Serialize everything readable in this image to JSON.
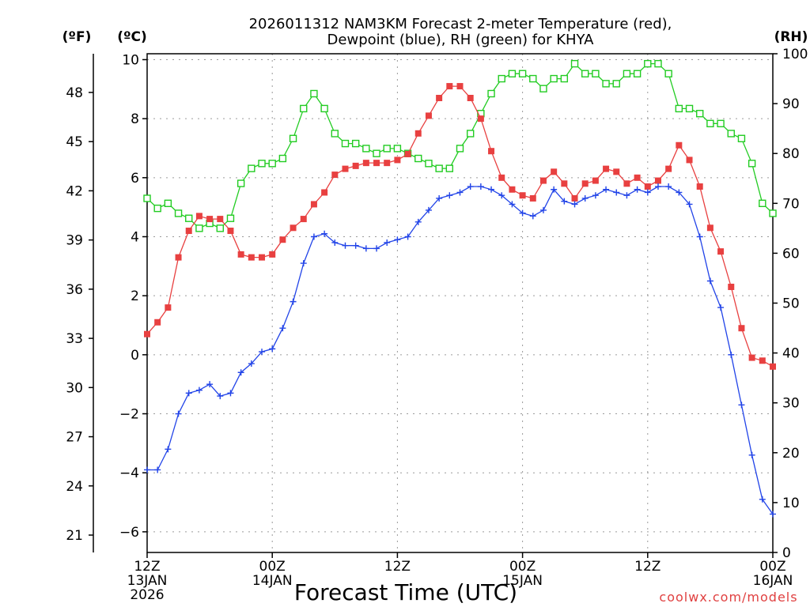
{
  "chart_data": {
    "type": "line",
    "title_line1": "2026011312 NAM3KM Forecast 2-meter Temperature (red),",
    "title_line2": "Dewpoint (blue), RH (green) for KHYA",
    "xlabel": "Forecast Time (UTC)",
    "credit": "coolwx.com/models",
    "left_unit_f": "(ºF)",
    "left_unit_c": "(ºC)",
    "right_unit": "(RH)",
    "ylim_c": [
      -6.7,
      10.2
    ],
    "ylim_rh": [
      0,
      100
    ],
    "hours_range": [
      0,
      60
    ],
    "x_ticks": [
      {
        "hour": 0,
        "label1": "12Z",
        "label2": "13JAN",
        "label3": "2026"
      },
      {
        "hour": 12,
        "label1": "00Z",
        "label2": "14JAN",
        "label3": ""
      },
      {
        "hour": 24,
        "label1": "12Z",
        "label2": "",
        "label3": ""
      },
      {
        "hour": 36,
        "label1": "00Z",
        "label2": "15JAN",
        "label3": ""
      },
      {
        "hour": 48,
        "label1": "12Z",
        "label2": "",
        "label3": ""
      },
      {
        "hour": 60,
        "label1": "00Z",
        "label2": "16JAN",
        "label3": ""
      }
    ],
    "c_ticks": [
      {
        "value": 10,
        "label": "10"
      },
      {
        "value": 8,
        "label": "8"
      },
      {
        "value": 6,
        "label": "6"
      },
      {
        "value": 4,
        "label": "4"
      },
      {
        "value": 2,
        "label": "2"
      },
      {
        "value": 0,
        "label": "0"
      },
      {
        "value": -2,
        "label": "−2"
      },
      {
        "value": -4,
        "label": "−4"
      },
      {
        "value": -6,
        "label": "−6"
      }
    ],
    "f_ticks": [
      {
        "value": 48,
        "label": "48"
      },
      {
        "value": 45,
        "label": "45"
      },
      {
        "value": 42,
        "label": "42"
      },
      {
        "value": 39,
        "label": "39"
      },
      {
        "value": 36,
        "label": "36"
      },
      {
        "value": 33,
        "label": "33"
      },
      {
        "value": 30,
        "label": "30"
      },
      {
        "value": 27,
        "label": "27"
      },
      {
        "value": 24,
        "label": "24"
      },
      {
        "value": 21,
        "label": "21"
      }
    ],
    "rh_ticks": [
      {
        "value": 100,
        "label": "100"
      },
      {
        "value": 90,
        "label": "90"
      },
      {
        "value": 80,
        "label": "80"
      },
      {
        "value": 70,
        "label": "70"
      },
      {
        "value": 60,
        "label": "60"
      },
      {
        "value": 50,
        "label": "50"
      },
      {
        "value": 40,
        "label": "40"
      },
      {
        "value": 30,
        "label": "30"
      },
      {
        "value": 20,
        "label": "20"
      },
      {
        "value": 10,
        "label": "10"
      },
      {
        "value": 0,
        "label": "0"
      }
    ],
    "series": [
      {
        "name": "2-meter Temperature (°C)",
        "color": "#e84040",
        "marker": "filled-square",
        "axis": "celsius",
        "x": [
          0,
          1,
          2,
          3,
          4,
          5,
          6,
          7,
          8,
          9,
          10,
          11,
          12,
          13,
          14,
          15,
          16,
          17,
          18,
          19,
          20,
          21,
          22,
          23,
          24,
          25,
          26,
          27,
          28,
          29,
          30,
          31,
          32,
          33,
          34,
          35,
          36,
          37,
          38,
          39,
          40,
          41,
          42,
          43,
          44,
          45,
          46,
          47,
          48,
          49,
          50,
          51,
          52,
          53,
          54,
          55,
          56,
          57,
          58,
          59,
          60
        ],
        "values": [
          0.7,
          1.1,
          1.6,
          3.3,
          4.2,
          4.7,
          4.6,
          4.6,
          4.2,
          3.4,
          3.3,
          3.3,
          3.4,
          3.9,
          4.3,
          4.6,
          5.1,
          5.5,
          6.1,
          6.3,
          6.4,
          6.5,
          6.5,
          6.5,
          6.6,
          6.8,
          7.5,
          8.1,
          8.7,
          9.1,
          9.1,
          8.7,
          8.0,
          6.9,
          6.0,
          5.6,
          5.4,
          5.3,
          5.9,
          6.2,
          5.8,
          5.3,
          5.8,
          5.9,
          6.3,
          6.2,
          5.8,
          6.0,
          5.7,
          5.9,
          6.3,
          7.1,
          6.6,
          5.7,
          4.3,
          3.5,
          2.3,
          0.9,
          -0.1,
          -0.2,
          -0.4
        ]
      },
      {
        "name": "Dewpoint (°C)",
        "color": "#2244e8",
        "marker": "plus",
        "axis": "celsius",
        "x": [
          0,
          1,
          2,
          3,
          4,
          5,
          6,
          7,
          8,
          9,
          10,
          11,
          12,
          13,
          14,
          15,
          16,
          17,
          18,
          19,
          20,
          21,
          22,
          23,
          24,
          25,
          26,
          27,
          28,
          29,
          30,
          31,
          32,
          33,
          34,
          35,
          36,
          37,
          38,
          39,
          40,
          41,
          42,
          43,
          44,
          45,
          46,
          47,
          48,
          49,
          50,
          51,
          52,
          53,
          54,
          55,
          56,
          57,
          58,
          59,
          60
        ],
        "values": [
          -3.9,
          -3.9,
          -3.2,
          -2.0,
          -1.3,
          -1.2,
          -1.0,
          -1.4,
          -1.3,
          -0.6,
          -0.3,
          0.1,
          0.2,
          0.9,
          1.8,
          3.1,
          4.0,
          4.1,
          3.8,
          3.7,
          3.7,
          3.6,
          3.6,
          3.8,
          3.9,
          4.0,
          4.5,
          4.9,
          5.3,
          5.4,
          5.5,
          5.7,
          5.7,
          5.6,
          5.4,
          5.1,
          4.8,
          4.7,
          4.9,
          5.6,
          5.2,
          5.1,
          5.3,
          5.4,
          5.6,
          5.5,
          5.4,
          5.6,
          5.5,
          5.7,
          5.7,
          5.5,
          5.1,
          4.0,
          2.5,
          1.6,
          0.0,
          -1.7,
          -3.4,
          -4.9,
          -5.4
        ]
      },
      {
        "name": "RH (%)",
        "color": "#22cc22",
        "marker": "open-square",
        "axis": "rh",
        "x": [
          0,
          1,
          2,
          3,
          4,
          5,
          6,
          7,
          8,
          9,
          10,
          11,
          12,
          13,
          14,
          15,
          16,
          17,
          18,
          19,
          20,
          21,
          22,
          23,
          24,
          25,
          26,
          27,
          28,
          29,
          30,
          31,
          32,
          33,
          34,
          35,
          36,
          37,
          38,
          39,
          40,
          41,
          42,
          43,
          44,
          45,
          46,
          47,
          48,
          49,
          50,
          51,
          52,
          53,
          54,
          55,
          56,
          57,
          58,
          59,
          60
        ],
        "values": [
          71,
          69,
          70,
          68,
          67,
          65,
          66,
          65,
          67,
          74,
          77,
          78,
          78,
          79,
          83,
          89,
          92,
          89,
          84,
          82,
          82,
          81,
          80,
          81,
          81,
          80,
          79,
          78,
          77,
          77,
          81,
          84,
          88,
          92,
          95,
          96,
          96,
          95,
          93,
          95,
          95,
          98,
          96,
          96,
          94,
          94,
          96,
          96,
          98,
          98,
          96,
          89,
          89,
          88,
          86,
          86,
          84,
          83,
          78,
          70,
          68
        ]
      }
    ]
  }
}
